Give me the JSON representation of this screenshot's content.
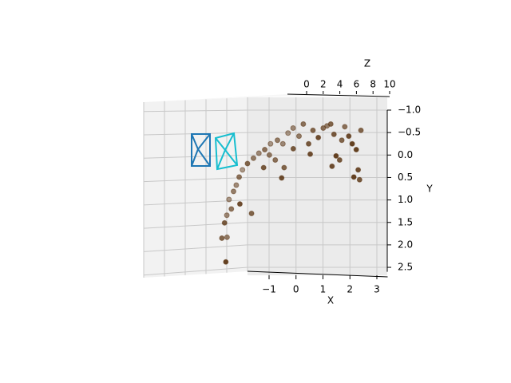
{
  "chart_data": {
    "type": "scatter3d",
    "x_label": "X",
    "y_label": "Y",
    "z_label": "Z",
    "xlim": [
      -1.8,
      3.4
    ],
    "ylim": [
      -1.0,
      2.6
    ],
    "zlim": [
      0,
      10
    ],
    "xticks": [
      {
        "value": -1,
        "label": "−1"
      },
      0,
      1,
      2,
      3
    ],
    "yticks": [
      {
        "value": -1,
        "label": "−1.0"
      },
      {
        "value": -0.5,
        "label": "−0.5"
      },
      {
        "value": 0,
        "label": "0.0"
      },
      {
        "value": 0.5,
        "label": "0.5"
      },
      {
        "value": 1,
        "label": "1.0"
      },
      {
        "value": 1.5,
        "label": "1.5"
      },
      {
        "value": 2,
        "label": "2.0"
      },
      {
        "value": 2.5,
        "label": "2.5"
      }
    ],
    "zticks": [
      0,
      2,
      4,
      6,
      8,
      10
    ],
    "y_inverted": true,
    "grid": true,
    "series": [
      {
        "color": "#5a3412",
        "x": [
          -2.64,
          -2.76,
          -2.55,
          -2.67,
          -2.55,
          -2.4,
          -2.11,
          -1.66,
          -2.46,
          -2.31,
          -2.2,
          -2.11,
          -1.96,
          -1.81,
          -1.57,
          -1.36,
          -1.16,
          -1.22,
          -0.92,
          -0.68,
          -0.47,
          -0.56,
          -0.45,
          -0.27,
          -0.09,
          0.12,
          0.27,
          0.45,
          0.62,
          0.8,
          1.01,
          1.16,
          1.28,
          1.39,
          1.45,
          1.31,
          1.6,
          1.69,
          1.81,
          1.93,
          2.05,
          2.11,
          2.28,
          2.34,
          2.4,
          2.2,
          0.5,
          -0.12,
          -0.77,
          -0.98
        ],
        "y": [
          2.38,
          1.85,
          1.83,
          1.51,
          1.34,
          1.2,
          1.09,
          1.3,
          0.99,
          0.81,
          0.67,
          0.49,
          0.33,
          0.19,
          0.07,
          -0.04,
          -0.12,
          0.28,
          -0.25,
          -0.33,
          -0.25,
          0.51,
          0.28,
          -0.49,
          -0.6,
          -0.42,
          -0.69,
          -0.25,
          -0.55,
          -0.39,
          -0.6,
          -0.65,
          -0.69,
          -0.46,
          0.02,
          0.25,
          0.11,
          -0.33,
          -0.63,
          -0.42,
          -0.25,
          0.49,
          0.33,
          0.55,
          -0.55,
          -0.12,
          -0.02,
          -0.14,
          0.11,
          0.0
        ],
        "z": [
          9,
          6,
          4,
          7,
          3,
          5,
          8,
          6,
          2,
          4,
          3,
          5,
          2,
          6,
          4,
          3,
          5,
          7,
          2,
          4,
          3,
          8,
          6,
          2,
          3,
          4,
          5,
          7,
          6,
          8,
          5,
          4,
          6,
          7,
          9,
          8,
          7,
          6,
          5,
          8,
          9,
          9,
          8,
          7,
          6,
          9,
          8,
          7,
          5,
          4
        ]
      }
    ]
  }
}
